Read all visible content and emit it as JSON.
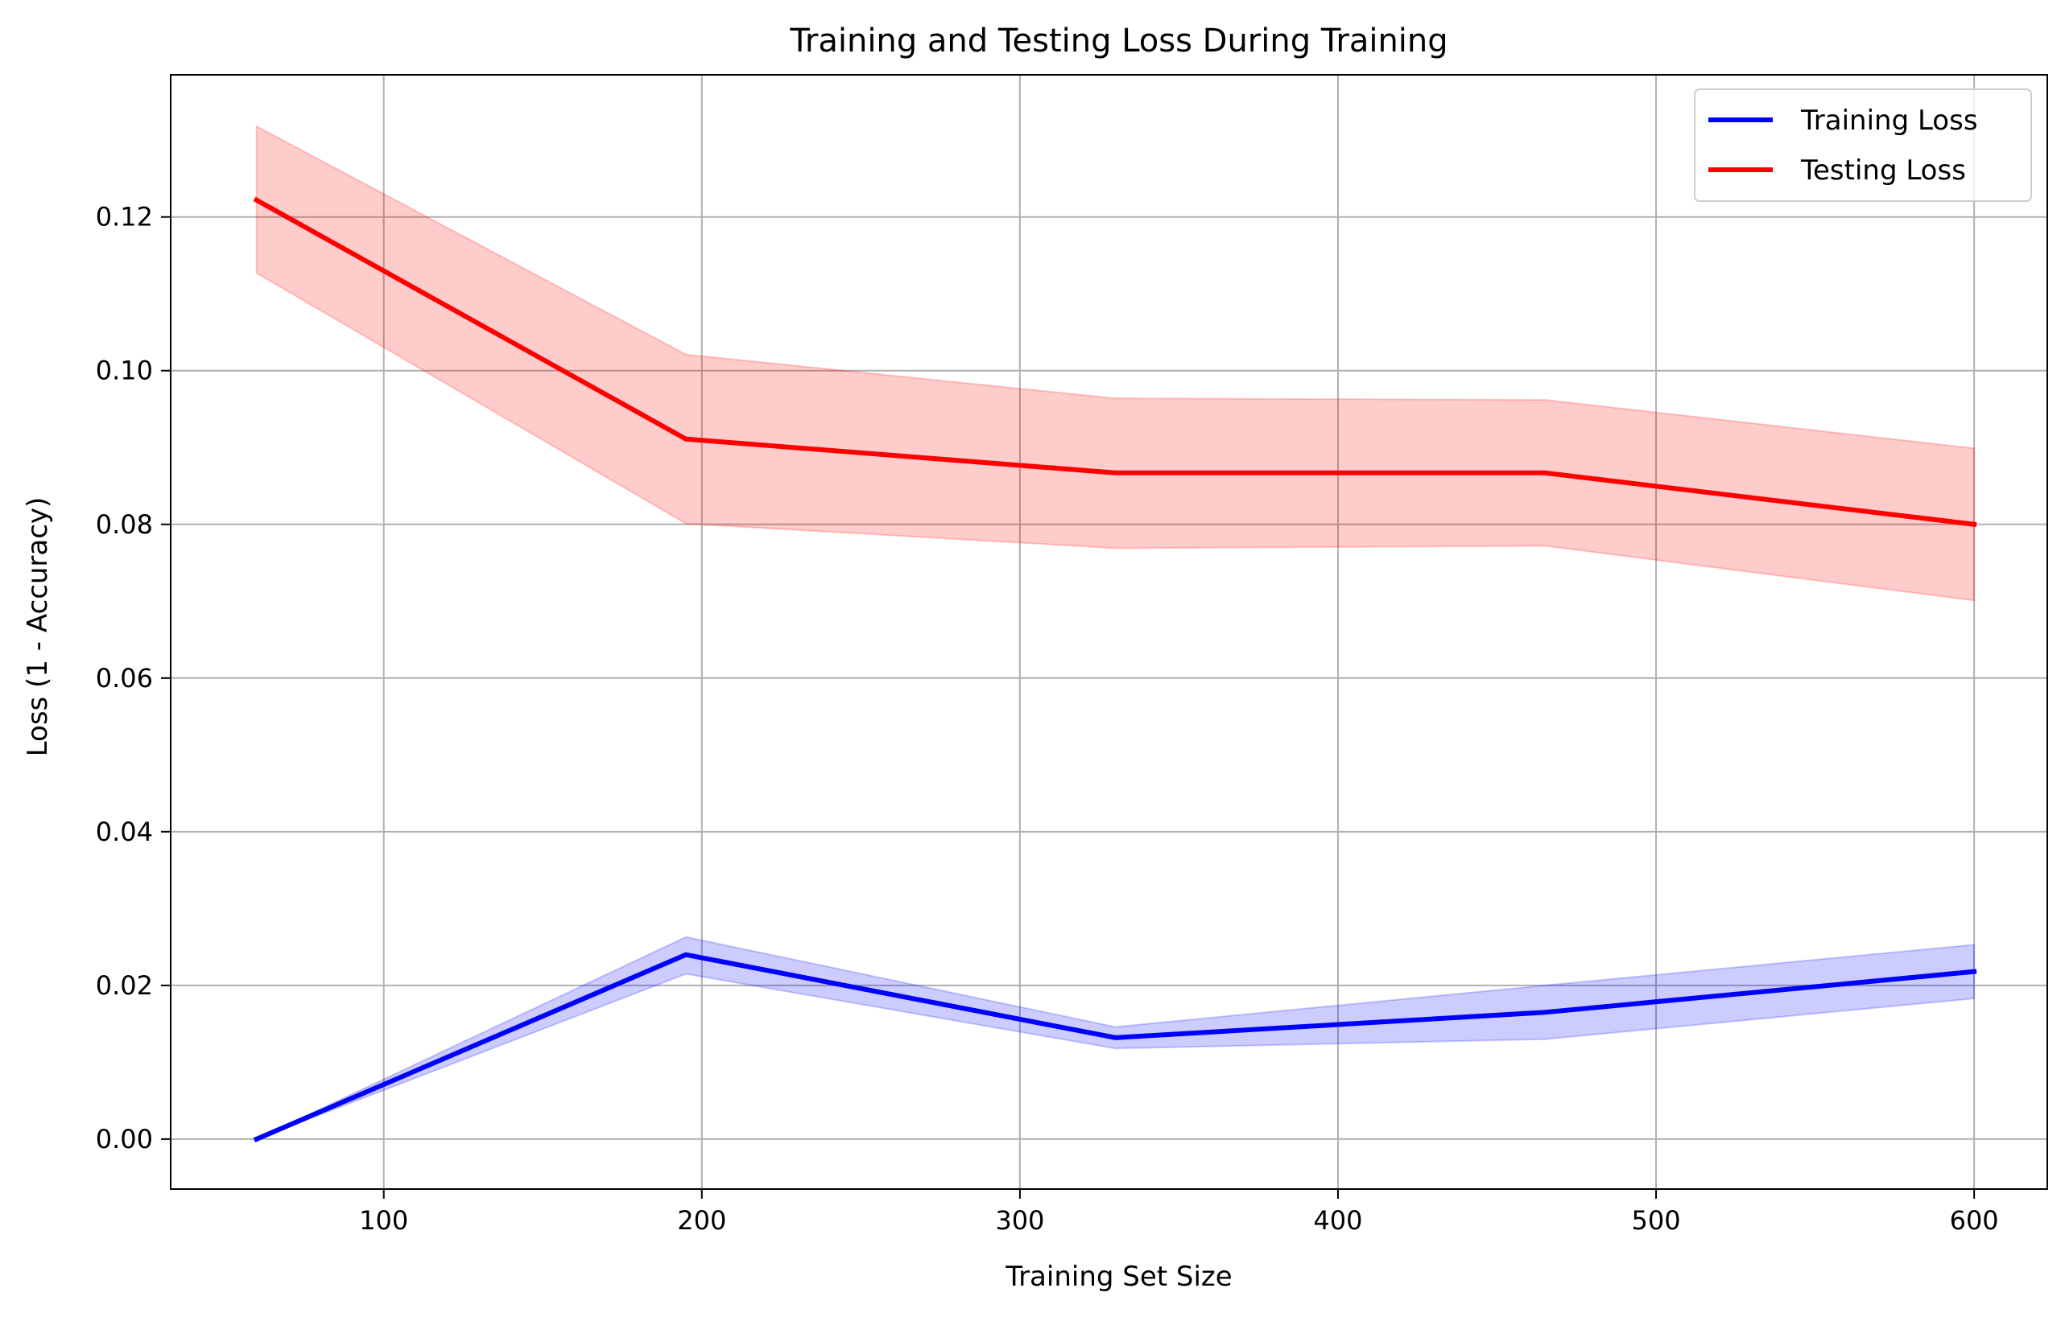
{
  "chart_data": {
    "type": "line",
    "title": "Training and Testing Loss During Training",
    "xlabel": "Training Set Size",
    "ylabel": "Loss (1 - Accuracy)",
    "xlim": [
      33,
      623
    ],
    "ylim": [
      -0.0065,
      0.1385
    ],
    "xticks": [
      100,
      200,
      300,
      400,
      500,
      600
    ],
    "yticks": [
      0.0,
      0.02,
      0.04,
      0.06,
      0.08,
      0.1,
      0.12
    ],
    "xtick_labels": [
      "100",
      "200",
      "300",
      "400",
      "500",
      "600"
    ],
    "ytick_labels": [
      "0.00",
      "0.02",
      "0.04",
      "0.06",
      "0.08",
      "0.10",
      "0.12"
    ],
    "grid": true,
    "legend_position": "upper right",
    "x": [
      60,
      195,
      330,
      465,
      600
    ],
    "series": [
      {
        "name": "Training Loss",
        "color": "#0000ff",
        "band_color": "#0000ff",
        "values": [
          0.0,
          0.024,
          0.0132,
          0.0165,
          0.0218
        ],
        "lower": [
          0.0,
          0.0215,
          0.0118,
          0.013,
          0.0183
        ],
        "upper": [
          0.0,
          0.0263,
          0.0146,
          0.02,
          0.0253
        ]
      },
      {
        "name": "Testing Loss",
        "color": "#ff0000",
        "band_color": "#ff0000",
        "values": [
          0.1222,
          0.0911,
          0.0867,
          0.0867,
          0.08
        ],
        "lower": [
          0.1127,
          0.0801,
          0.0769,
          0.0772,
          0.0701
        ],
        "upper": [
          0.1318,
          0.1021,
          0.0964,
          0.0962,
          0.0899
        ]
      }
    ]
  }
}
